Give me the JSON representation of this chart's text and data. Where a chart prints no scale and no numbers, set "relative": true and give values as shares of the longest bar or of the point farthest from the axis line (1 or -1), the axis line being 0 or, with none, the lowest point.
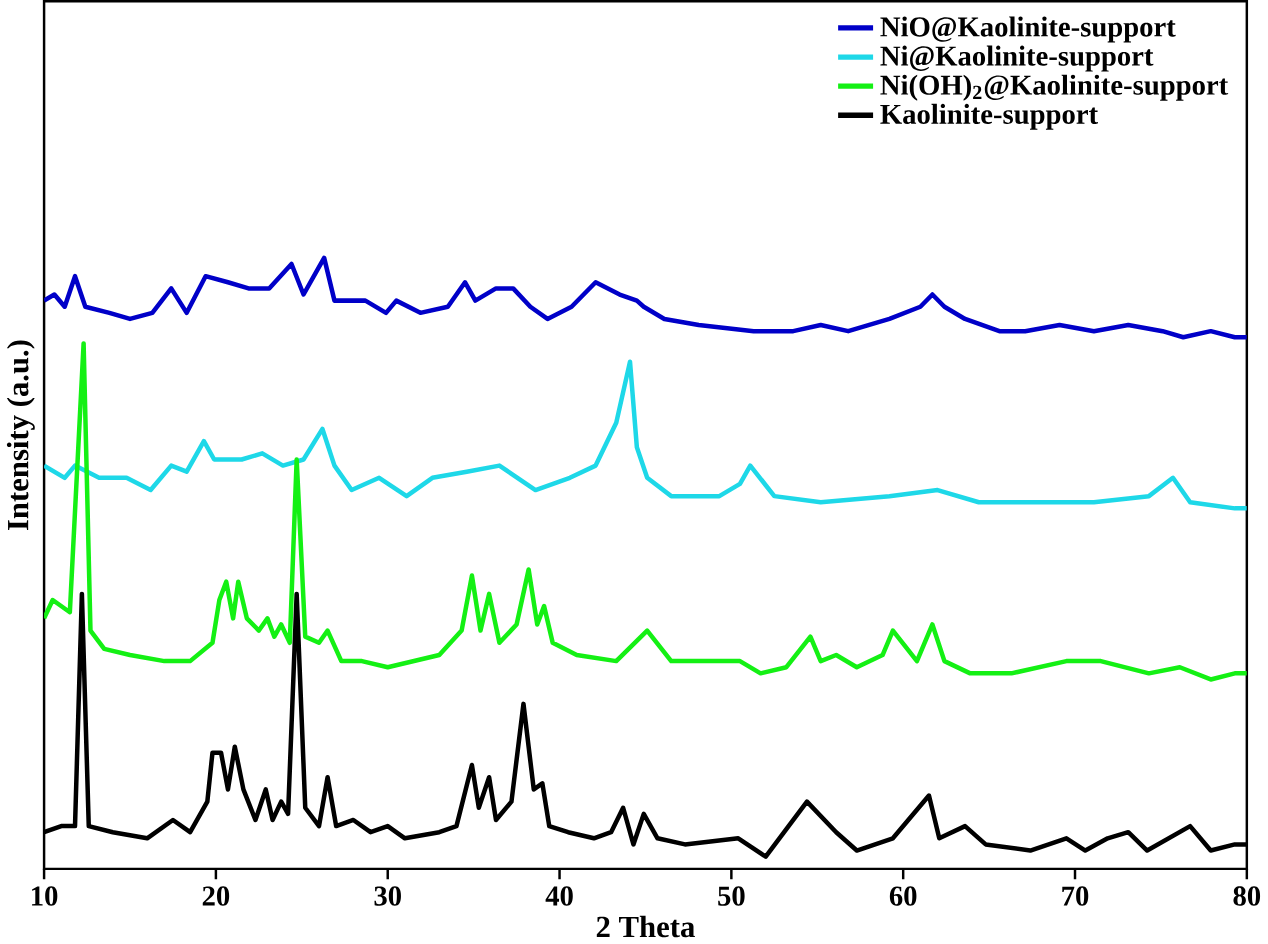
{
  "chart_data": {
    "type": "line",
    "relative": true,
    "xlabel": "2 Theta",
    "ylabel": "Intensity (a.u.)",
    "xlim": [
      10,
      80
    ],
    "xticks": [
      10,
      20,
      30,
      40,
      50,
      60,
      70,
      80
    ],
    "legend": "top right",
    "line_style": "solid",
    "tick_labels": "x",
    "series": [
      {
        "name": "NiO@Kaolinite-support",
        "color": "#0000c8",
        "x": [
          10,
          10.6,
          11.2,
          11.8,
          12.4,
          13.8,
          15,
          16.3,
          17.4,
          18.3,
          19.4,
          20.7,
          21.9,
          23.1,
          24.4,
          25.1,
          25.7,
          26.3,
          26.9,
          28.7,
          29.9,
          30.5,
          31.9,
          33.5,
          34.5,
          35.1,
          36.3,
          37.3,
          38.3,
          39.3,
          40.7,
          42.1,
          43.5,
          44.5,
          44.9,
          46.1,
          48.1,
          51.3,
          53.6,
          55.2,
          56.8,
          59.2,
          61,
          61.7,
          62.4,
          63.6,
          65.6,
          67.1,
          69.1,
          71.1,
          73.1,
          75.1,
          76.3,
          77.9,
          79.3,
          80
        ],
        "values": [
          0.93,
          0.94,
          0.92,
          0.97,
          0.92,
          0.91,
          0.9,
          0.91,
          0.95,
          0.91,
          0.97,
          0.96,
          0.95,
          0.95,
          0.99,
          0.94,
          0.97,
          1.0,
          0.93,
          0.93,
          0.91,
          0.93,
          0.91,
          0.92,
          0.96,
          0.93,
          0.95,
          0.95,
          0.92,
          0.9,
          0.92,
          0.96,
          0.94,
          0.93,
          0.92,
          0.9,
          0.89,
          0.88,
          0.88,
          0.89,
          0.88,
          0.9,
          0.92,
          0.94,
          0.92,
          0.9,
          0.88,
          0.88,
          0.89,
          0.88,
          0.89,
          0.88,
          0.87,
          0.88,
          0.87,
          0.87
        ]
      },
      {
        "name": "Ni@Kaolinite-support",
        "color": "#1ed8e8",
        "x": [
          10,
          11.2,
          11.8,
          13.2,
          14.8,
          16.2,
          17.4,
          18.3,
          19.3,
          19.9,
          21.5,
          22.7,
          23.9,
          25.1,
          26.2,
          26.9,
          27.9,
          29.5,
          31.1,
          32.6,
          34.6,
          36.5,
          38.6,
          40.6,
          42.1,
          43.3,
          44.1,
          44.5,
          45.1,
          46.5,
          49.3,
          50.5,
          51.1,
          52.5,
          55.2,
          59.2,
          62,
          64.4,
          67.1,
          71.1,
          74.3,
          75.7,
          76.7,
          79.3,
          80
        ],
        "values": [
          0.66,
          0.64,
          0.66,
          0.64,
          0.64,
          0.62,
          0.66,
          0.65,
          0.7,
          0.67,
          0.67,
          0.68,
          0.66,
          0.67,
          0.72,
          0.66,
          0.62,
          0.64,
          0.61,
          0.64,
          0.65,
          0.66,
          0.62,
          0.64,
          0.66,
          0.73,
          0.83,
          0.69,
          0.64,
          0.61,
          0.61,
          0.63,
          0.66,
          0.61,
          0.6,
          0.61,
          0.62,
          0.6,
          0.6,
          0.6,
          0.61,
          0.64,
          0.6,
          0.59,
          0.59
        ]
      },
      {
        "name": "Ni(OH)$_{2}$@Kaolinite-support",
        "color": "#14f014",
        "x": [
          10,
          10.5,
          11.5,
          12.3,
          12.7,
          13.5,
          15,
          17,
          18.5,
          19.8,
          20.2,
          20.6,
          21,
          21.3,
          21.8,
          22.5,
          23,
          23.4,
          23.8,
          24.3,
          24.7,
          25.2,
          26,
          26.5,
          27.3,
          28.5,
          30,
          31.5,
          33,
          34.3,
          34.9,
          35.4,
          35.9,
          36.5,
          37.5,
          38.2,
          38.7,
          39.1,
          39.6,
          41,
          43.3,
          45.1,
          46.5,
          48.1,
          50.5,
          51.7,
          53.2,
          54.6,
          55.2,
          56.1,
          57.3,
          58.8,
          59.4,
          60.8,
          61.7,
          62.4,
          63.9,
          66.3,
          69.5,
          71.5,
          74.3,
          76.1,
          77.9,
          79.3,
          80
        ],
        "values": [
          0.41,
          0.44,
          0.42,
          0.86,
          0.39,
          0.36,
          0.35,
          0.34,
          0.34,
          0.37,
          0.44,
          0.47,
          0.41,
          0.47,
          0.41,
          0.39,
          0.41,
          0.38,
          0.4,
          0.37,
          0.67,
          0.38,
          0.37,
          0.39,
          0.34,
          0.34,
          0.33,
          0.34,
          0.35,
          0.39,
          0.48,
          0.39,
          0.45,
          0.37,
          0.4,
          0.49,
          0.4,
          0.43,
          0.37,
          0.35,
          0.34,
          0.39,
          0.34,
          0.34,
          0.34,
          0.32,
          0.33,
          0.38,
          0.34,
          0.35,
          0.33,
          0.35,
          0.39,
          0.34,
          0.4,
          0.34,
          0.32,
          0.32,
          0.34,
          0.34,
          0.32,
          0.33,
          0.31,
          0.32,
          0.32
        ]
      },
      {
        "name": "Kaolinite-support",
        "color": "#000000",
        "x": [
          10,
          11,
          11.8,
          12.2,
          12.6,
          14,
          16,
          17.5,
          18.5,
          19.5,
          19.8,
          20.3,
          20.7,
          21.1,
          21.6,
          22.3,
          22.9,
          23.3,
          23.8,
          24.2,
          24.7,
          25.2,
          26,
          26.5,
          27,
          28,
          29,
          30,
          31,
          33,
          34,
          34.9,
          35.3,
          35.9,
          36.3,
          37.2,
          37.9,
          38.5,
          39,
          39.4,
          40.5,
          42,
          43,
          43.7,
          44.3,
          44.9,
          45.7,
          47.3,
          50.4,
          52,
          54.4,
          56.1,
          57.3,
          59.4,
          61.5,
          62.1,
          63.6,
          64.8,
          67.4,
          69.5,
          70.6,
          71.9,
          73.1,
          74.2,
          76.7,
          77.9,
          79.3,
          80
        ],
        "values": [
          0.06,
          0.07,
          0.07,
          0.45,
          0.07,
          0.06,
          0.05,
          0.08,
          0.06,
          0.11,
          0.19,
          0.19,
          0.13,
          0.2,
          0.13,
          0.08,
          0.13,
          0.08,
          0.11,
          0.09,
          0.45,
          0.1,
          0.07,
          0.15,
          0.07,
          0.08,
          0.06,
          0.07,
          0.05,
          0.06,
          0.07,
          0.17,
          0.1,
          0.15,
          0.08,
          0.11,
          0.27,
          0.13,
          0.14,
          0.07,
          0.06,
          0.05,
          0.06,
          0.1,
          0.04,
          0.09,
          0.05,
          0.04,
          0.05,
          0.02,
          0.11,
          0.06,
          0.03,
          0.05,
          0.12,
          0.05,
          0.07,
          0.04,
          0.03,
          0.05,
          0.03,
          0.05,
          0.06,
          0.03,
          0.07,
          0.03,
          0.04,
          0.04
        ]
      }
    ]
  }
}
